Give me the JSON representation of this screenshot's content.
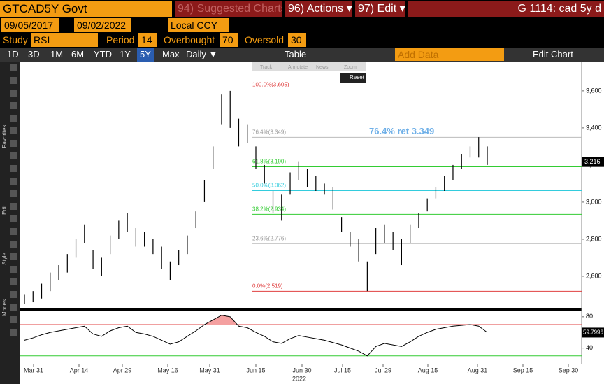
{
  "header": {
    "ticker": "GTCAD5Y Govt",
    "suggested": "94) Suggested Charts",
    "actions": "96) Actions ▾",
    "edit": "97) Edit ▾",
    "page": "G 1114: cad 5y d"
  },
  "range": {
    "start": "09/05/2017",
    "end": "09/02/2022",
    "currency": "Local CCY"
  },
  "study": {
    "label": "Study",
    "name": "RSI",
    "period_label": "Period",
    "period": 14,
    "overbought_label": "Overbought",
    "overbought": 70,
    "oversold_label": "Oversold",
    "oversold": 30
  },
  "toolbar": {
    "buttons": [
      "1D",
      "3D",
      "1M",
      "6M",
      "YTD",
      "1Y",
      "5Y",
      "Max"
    ],
    "frequency": "Daily ▼",
    "table": "Table",
    "add_data": "Add Data",
    "edit_chart": "Edit Chart"
  },
  "mini_toolbar": [
    "Track",
    "Annotate",
    "News",
    "Zoom"
  ],
  "reset": "Reset",
  "side_labels": [
    "Favorites",
    "Edit",
    "Style",
    "Modes"
  ],
  "chart_data": {
    "type": "ohlc",
    "high": [
      2.5,
      2.52,
      2.56,
      2.62,
      2.66,
      2.72,
      2.8,
      2.88,
      2.74,
      2.7,
      2.82,
      2.9,
      2.94,
      2.86,
      2.84,
      2.8,
      2.76,
      2.68,
      2.74,
      2.82,
      2.95,
      3.12,
      3.3,
      3.58,
      3.6,
      3.45,
      3.42,
      3.3,
      3.2,
      3.06,
      3.04,
      3.16,
      3.22,
      3.18,
      3.14,
      3.1,
      3.08,
      2.92,
      2.84,
      2.8,
      2.68,
      2.86,
      2.88,
      2.84,
      2.8,
      2.88,
      2.94,
      3.02,
      3.08,
      3.14,
      3.2,
      3.26,
      3.3,
      3.35,
      3.3
    ],
    "low": [
      2.45,
      2.46,
      2.48,
      2.52,
      2.58,
      2.62,
      2.7,
      2.78,
      2.64,
      2.6,
      2.72,
      2.8,
      2.84,
      2.76,
      2.76,
      2.72,
      2.64,
      2.58,
      2.66,
      2.72,
      2.86,
      3.0,
      3.18,
      3.42,
      3.4,
      3.3,
      3.32,
      3.18,
      3.1,
      2.94,
      2.9,
      3.04,
      3.12,
      3.08,
      3.06,
      3.04,
      2.96,
      2.84,
      2.76,
      2.68,
      2.52,
      2.72,
      2.78,
      2.74,
      2.66,
      2.78,
      2.86,
      2.95,
      3.02,
      3.06,
      3.12,
      3.18,
      3.24,
      3.24,
      3.2
    ],
    "ylim": [
      2.43,
      3.758
    ],
    "yticks": [
      {
        "value": 2.6,
        "label": "2,600"
      },
      {
        "value": 2.8,
        "label": "2,800"
      },
      {
        "value": 3.0,
        "label": "3,000"
      },
      {
        "value": 3.2,
        "label": "3,200"
      },
      {
        "value": 3.4,
        "label": "3,400"
      },
      {
        "value": 3.6,
        "label": "3,600"
      }
    ],
    "last_price": {
      "value": 3.216,
      "label": "3.216"
    },
    "fib": [
      {
        "value": 3.605,
        "label": "100.0%(3.605)",
        "color": "#e04040"
      },
      {
        "value": 3.349,
        "label": "76.4%(3.349)",
        "color": "#bbbbbb"
      },
      {
        "value": 3.19,
        "label": "61.8%(3.190)",
        "color": "#33cc33"
      },
      {
        "value": 3.062,
        "label": "50.0%(3.062)",
        "color": "#33ccdd"
      },
      {
        "value": 2.934,
        "label": "38.2%(2.934)",
        "color": "#33cc33"
      },
      {
        "value": 2.776,
        "label": "23.6%(2.776)",
        "color": "#bbbbbb"
      },
      {
        "value": 2.519,
        "label": "0.0%(2.519)",
        "color": "#e04040"
      }
    ],
    "annotation": {
      "value": 3.349,
      "label": "76.4% ret 3.349"
    },
    "x_labels": [
      "Mar 31",
      "Apr 14",
      "Apr 29",
      "May 16",
      "May 31",
      "Jun 15",
      "Jun 30",
      "Jul 15",
      "Jul 29",
      "Aug 15",
      "Aug 31",
      "Sep 15",
      "Sep 30"
    ],
    "year": "2022",
    "rsi": {
      "values": [
        50,
        53,
        57,
        60,
        62,
        64,
        66,
        68,
        58,
        55,
        62,
        66,
        68,
        60,
        58,
        55,
        50,
        45,
        48,
        55,
        62,
        70,
        76,
        82,
        80,
        68,
        66,
        60,
        55,
        48,
        46,
        52,
        56,
        54,
        52,
        50,
        47,
        44,
        40,
        36,
        30,
        42,
        46,
        44,
        42,
        48,
        55,
        60,
        64,
        66,
        68,
        69,
        70,
        68,
        60
      ],
      "ylim": [
        20,
        87
      ],
      "yticks": [
        40,
        80
      ],
      "last": {
        "value": 59.7996,
        "label": "59.7996"
      },
      "color": "#000000"
    }
  }
}
